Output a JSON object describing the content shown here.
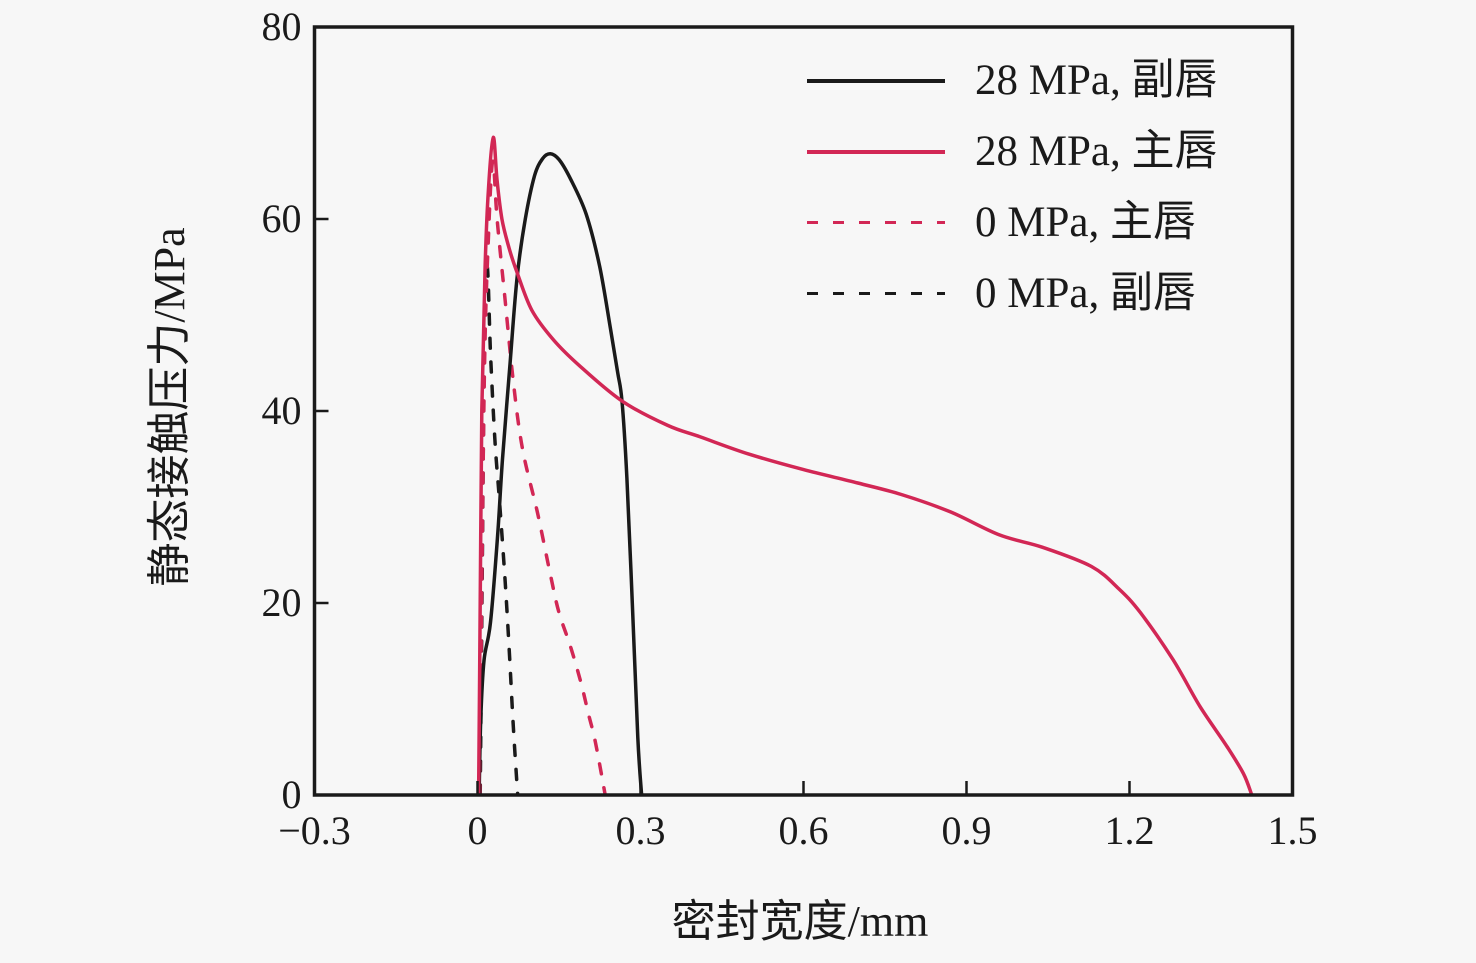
{
  "figure": {
    "background": "#f7f7f7",
    "axis_color": "#1a1a1a",
    "accent_red": "#d22755"
  },
  "chart_data": {
    "type": "line",
    "title": "",
    "xlabel": "密封宽度/mm",
    "ylabel": "静态接触压力/MPa",
    "xlim": [
      -0.3,
      1.5
    ],
    "ylim": [
      0,
      80
    ],
    "xticks": [
      -0.3,
      0,
      0.3,
      0.6,
      0.9,
      1.2,
      1.5
    ],
    "xtick_labels": [
      "−0.3",
      "0",
      "0.3",
      "0.6",
      "0.9",
      "1.2",
      "1.5"
    ],
    "yticks": [
      0,
      20,
      40,
      60,
      80
    ],
    "ytick_labels": [
      "0",
      "20",
      "40",
      "60",
      "80"
    ],
    "grid": false,
    "legend_position": "top-right",
    "series": [
      {
        "name": "28 MPa, 副唇",
        "color": "#1a1a1a",
        "style": "solid",
        "x": [
          0.003,
          0.006,
          0.012,
          0.024,
          0.037,
          0.046,
          0.06,
          0.073,
          0.088,
          0.105,
          0.12,
          0.134,
          0.15,
          0.17,
          0.2,
          0.225,
          0.245,
          0.258,
          0.266,
          0.275,
          0.285,
          0.295,
          0.302
        ],
        "y": [
          0,
          8,
          14,
          18,
          27,
          35,
          45,
          54,
          60,
          64.5,
          66.3,
          66.8,
          66.2,
          64.3,
          60.5,
          55,
          48.5,
          44,
          41,
          33,
          20,
          6,
          0
        ]
      },
      {
        "name": "28 MPa, 主唇",
        "color": "#d22755",
        "style": "solid",
        "x": [
          0.002,
          0.005,
          0.008,
          0.014,
          0.02,
          0.029,
          0.036,
          0.045,
          0.058,
          0.073,
          0.1,
          0.14,
          0.19,
          0.267,
          0.35,
          0.41,
          0.5,
          0.6,
          0.7,
          0.78,
          0.87,
          0.96,
          1.04,
          1.13,
          1.18,
          1.22,
          1.28,
          1.33,
          1.38,
          1.41,
          1.425
        ],
        "y": [
          0,
          20,
          40,
          55,
          63,
          68.5,
          64,
          60,
          57,
          54.4,
          50.5,
          47.4,
          44.6,
          41,
          38.5,
          37.3,
          35.5,
          33.9,
          32.5,
          31.3,
          29.5,
          27.1,
          25.8,
          23.8,
          21.5,
          19,
          14.1,
          9.2,
          5,
          2.2,
          0
        ]
      },
      {
        "name": "0 MPa, 主唇",
        "color": "#d22755",
        "style": "dashed",
        "x": [
          0.004,
          0.008,
          0.013,
          0.02,
          0.028,
          0.036,
          0.05,
          0.066,
          0.083,
          0.11,
          0.134,
          0.15,
          0.171,
          0.19,
          0.204,
          0.217,
          0.235
        ],
        "y": [
          0,
          22,
          45,
          58,
          66,
          60,
          52,
          43,
          36,
          29.5,
          23,
          19,
          15.5,
          11.8,
          8.5,
          5.5,
          0
        ]
      },
      {
        "name": "0 MPa, 副唇",
        "color": "#1a1a1a",
        "style": "dashed",
        "x": [
          0.005,
          0.009,
          0.013,
          0.018,
          0.024,
          0.032,
          0.04,
          0.05,
          0.058,
          0.066,
          0.074
        ],
        "y": [
          0,
          25,
          48,
          55,
          46,
          37,
          31,
          23,
          15.5,
          7,
          0
        ]
      }
    ]
  }
}
